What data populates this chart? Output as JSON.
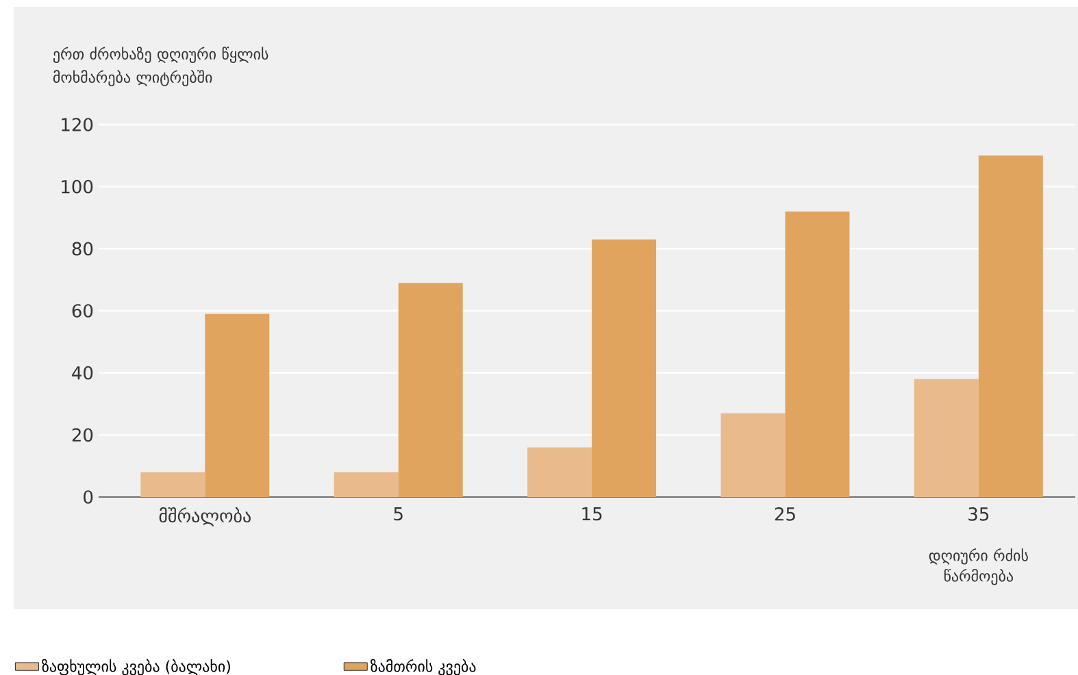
{
  "chart_data": {
    "type": "bar",
    "ylabel": "ერთ ძროხაზე დღიური წყლის მოხმარება ლიტრებში",
    "xlabel": "დღიური რძის წარმოება",
    "categories": [
      "მშრალობა",
      "5",
      "15",
      "25",
      "35"
    ],
    "series": [
      {
        "name": "ზაფხულის კვება (ბალახი)",
        "color": "#e9bb8c",
        "values": [
          8,
          8,
          16,
          27,
          38
        ]
      },
      {
        "name": "ზამთრის კვება",
        "color": "#e0a45f",
        "values": [
          59,
          69,
          83,
          92,
          110
        ]
      }
    ],
    "ylim": [
      0,
      120
    ],
    "yticks": [
      0,
      20,
      40,
      60,
      80,
      100,
      120
    ],
    "grid": "y",
    "legend": "bottom"
  }
}
